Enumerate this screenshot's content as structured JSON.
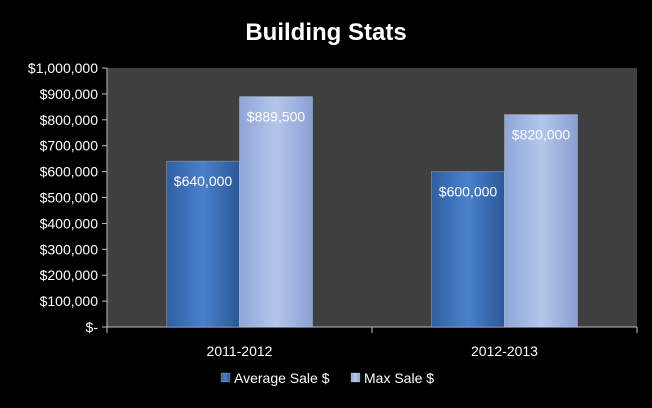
{
  "chart_data": {
    "type": "bar",
    "title": "Building Stats",
    "xlabel": "",
    "ylabel": "",
    "categories": [
      "2011-2012",
      "2012-2013"
    ],
    "series": [
      {
        "name": "Average Sale $",
        "values": [
          640000,
          600000
        ],
        "labels": [
          "$640,000",
          "$600,000"
        ],
        "color": "#3a6fb7"
      },
      {
        "name": "Max Sale $",
        "values": [
          889500,
          820000
        ],
        "labels": [
          "$889,500",
          "$820,000"
        ],
        "color": "#9db3e0"
      }
    ],
    "ylim": [
      0,
      1000000
    ],
    "yticks": [
      0,
      100000,
      200000,
      300000,
      400000,
      500000,
      600000,
      700000,
      800000,
      900000,
      1000000
    ],
    "ytick_labels": [
      "$-",
      "$100,000",
      "$200,000",
      "$300,000",
      "$400,000",
      "$500,000",
      "$600,000",
      "$700,000",
      "$800,000",
      "$900,000",
      "$1,000,000"
    ],
    "grid": false,
    "legend": "bottom",
    "colors": {
      "background": "#000000",
      "plot_background": "#3f3f3f",
      "text": "#ffffff"
    }
  }
}
